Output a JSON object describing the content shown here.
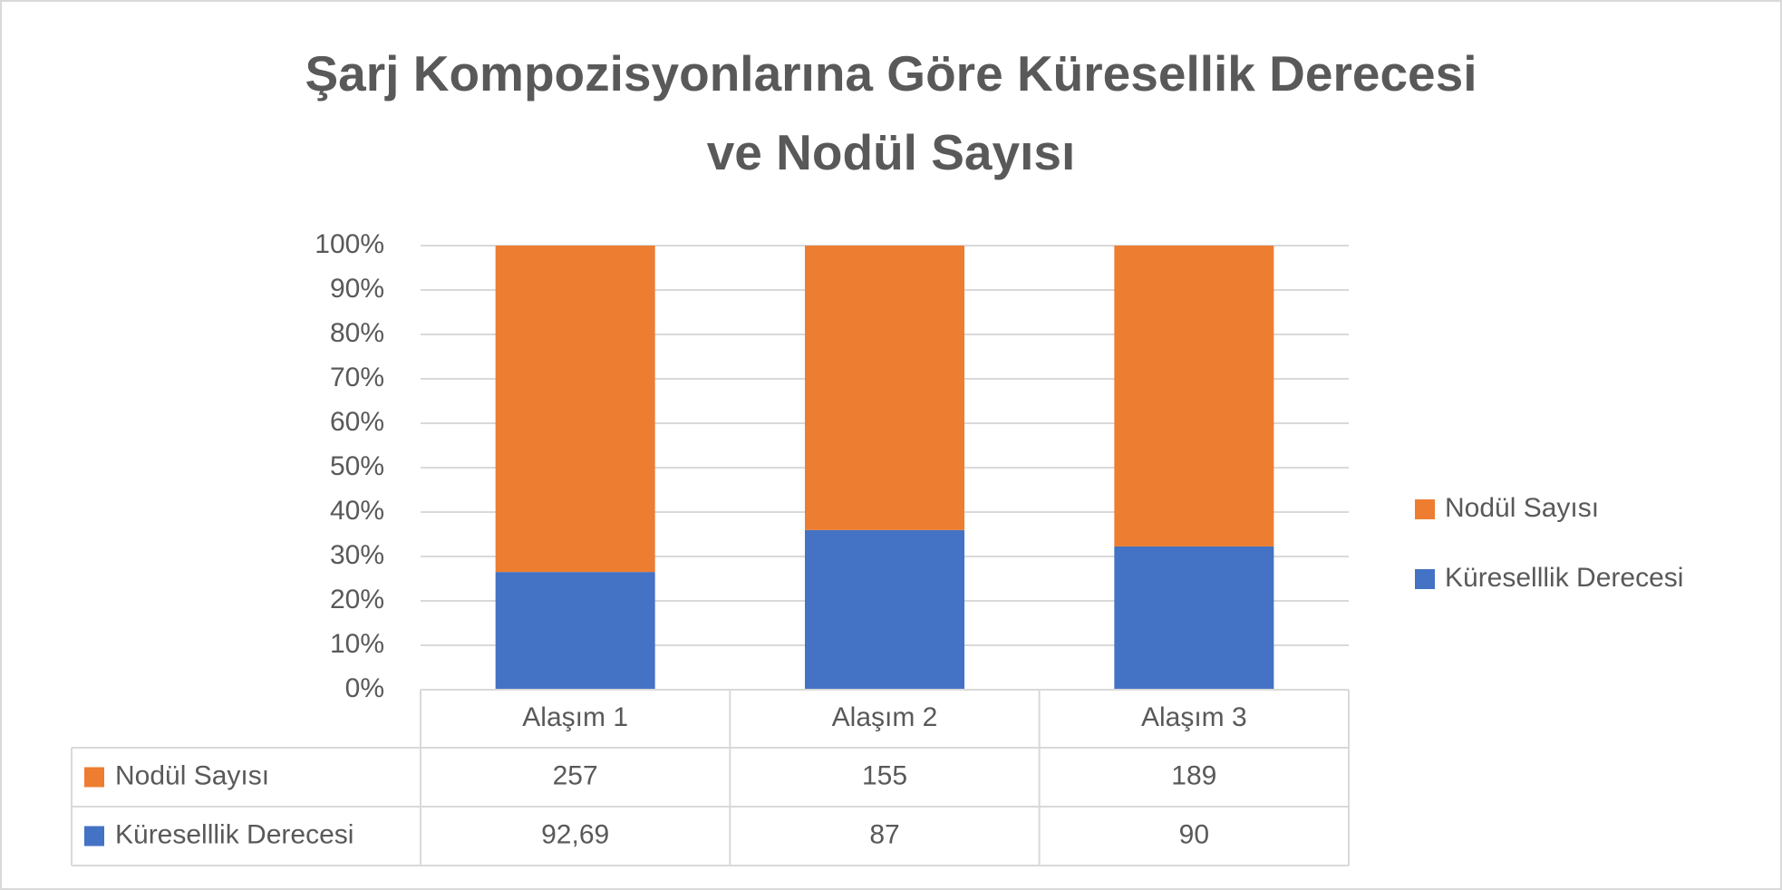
{
  "chart_data": {
    "type": "bar",
    "stack": "percent",
    "title": "Şarj Kompozisyonlarına Göre Küresellik Derecesi ve Nodül Sayısı",
    "categories": [
      "Alaşım 1",
      "Alaşım 2",
      "Alaşım 3"
    ],
    "series": [
      {
        "name": "Küreselllik Derecesi",
        "color": "#4472c4",
        "values": [
          92.69,
          87,
          90
        ],
        "value_labels": [
          "92,69",
          "87",
          "90"
        ]
      },
      {
        "name": "Nodül Sayısı",
        "color": "#ed7d31",
        "values": [
          257,
          155,
          189
        ]
      }
    ],
    "ylim": [
      0,
      100
    ],
    "yticks": [
      {
        "value": 0,
        "label": "0%"
      },
      {
        "value": 10,
        "label": "10%"
      },
      {
        "value": 20,
        "label": "20%"
      },
      {
        "value": 30,
        "label": "30%"
      },
      {
        "value": 40,
        "label": "40%"
      },
      {
        "value": 50,
        "label": "50%"
      },
      {
        "value": 60,
        "label": "60%"
      },
      {
        "value": 70,
        "label": "70%"
      },
      {
        "value": 80,
        "label": "80%"
      },
      {
        "value": 90,
        "label": "90%"
      },
      {
        "value": 100,
        "label": "100%"
      }
    ],
    "grid": true,
    "legend": "right",
    "data_table": true
  }
}
